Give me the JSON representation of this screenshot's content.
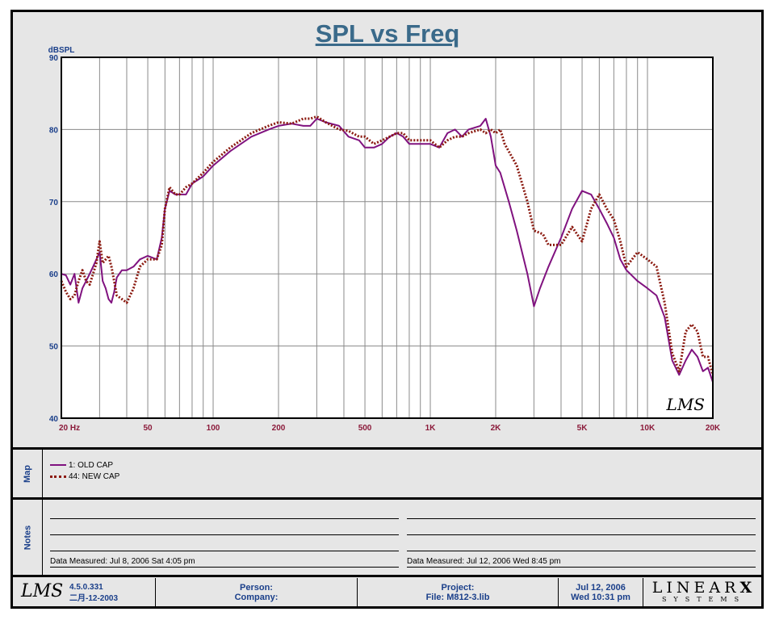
{
  "title": "SPL vs Freq",
  "chart_data": {
    "type": "line",
    "ylabel": "dBSPL",
    "xscale": "log",
    "xlim": [
      20,
      20000
    ],
    "ylim": [
      40,
      90
    ],
    "grid": true,
    "y_ticks": [
      40,
      50,
      60,
      70,
      80,
      90
    ],
    "y_tick_labels": [
      "40",
      "50",
      "60",
      "70",
      "80",
      "90"
    ],
    "x_ticks": [
      20,
      50,
      100,
      200,
      500,
      1000,
      2000,
      5000,
      10000,
      20000
    ],
    "x_tick_labels": [
      "20  Hz",
      "50",
      "100",
      "200",
      "500",
      "1K",
      "2K",
      "5K",
      "10K",
      "20K"
    ],
    "series": [
      {
        "name": "1: OLD CAP",
        "color": "#80127f",
        "style": "solid",
        "points": [
          [
            20,
            60
          ],
          [
            21,
            59.8
          ],
          [
            22,
            58.5
          ],
          [
            23,
            60
          ],
          [
            24,
            56
          ],
          [
            25,
            58
          ],
          [
            26,
            59
          ],
          [
            27,
            60
          ],
          [
            28,
            61
          ],
          [
            29,
            62
          ],
          [
            30,
            63
          ],
          [
            31,
            59
          ],
          [
            32,
            58
          ],
          [
            33,
            56.5
          ],
          [
            34,
            56
          ],
          [
            35,
            57.5
          ],
          [
            36,
            59.5
          ],
          [
            38,
            60.5
          ],
          [
            40,
            60.5
          ],
          [
            43,
            61
          ],
          [
            46,
            62
          ],
          [
            50,
            62.5
          ],
          [
            55,
            62
          ],
          [
            58,
            65
          ],
          [
            60,
            69
          ],
          [
            63,
            71.5
          ],
          [
            67,
            71
          ],
          [
            70,
            71
          ],
          [
            75,
            71
          ],
          [
            80,
            72.5
          ],
          [
            90,
            73.5
          ],
          [
            100,
            75
          ],
          [
            120,
            77
          ],
          [
            150,
            79
          ],
          [
            180,
            80
          ],
          [
            200,
            80.5
          ],
          [
            230,
            80.8
          ],
          [
            260,
            80.5
          ],
          [
            280,
            80.5
          ],
          [
            300,
            81.5
          ],
          [
            330,
            81
          ],
          [
            380,
            80.5
          ],
          [
            420,
            79
          ],
          [
            470,
            78.5
          ],
          [
            500,
            77.5
          ],
          [
            550,
            77.5
          ],
          [
            600,
            78
          ],
          [
            650,
            79
          ],
          [
            700,
            79.5
          ],
          [
            750,
            79
          ],
          [
            800,
            78
          ],
          [
            900,
            78
          ],
          [
            1000,
            78
          ],
          [
            1100,
            77.5
          ],
          [
            1200,
            79.5
          ],
          [
            1300,
            80
          ],
          [
            1400,
            79
          ],
          [
            1500,
            80
          ],
          [
            1700,
            80.5
          ],
          [
            1800,
            81.5
          ],
          [
            1900,
            79
          ],
          [
            2000,
            75
          ],
          [
            2100,
            74
          ],
          [
            2300,
            70
          ],
          [
            2500,
            66
          ],
          [
            2800,
            60
          ],
          [
            3000,
            55.5
          ],
          [
            3200,
            58
          ],
          [
            3500,
            61
          ],
          [
            4000,
            65
          ],
          [
            4500,
            69
          ],
          [
            5000,
            71.5
          ],
          [
            5500,
            71
          ],
          [
            6000,
            69
          ],
          [
            6500,
            67
          ],
          [
            7000,
            65
          ],
          [
            7500,
            62
          ],
          [
            8000,
            60.5
          ],
          [
            9000,
            59
          ],
          [
            10000,
            58
          ],
          [
            11000,
            57
          ],
          [
            12000,
            54
          ],
          [
            13000,
            48
          ],
          [
            14000,
            46
          ],
          [
            15000,
            48
          ],
          [
            16000,
            49.5
          ],
          [
            17000,
            48.5
          ],
          [
            18000,
            46.5
          ],
          [
            19000,
            47
          ],
          [
            20000,
            45
          ]
        ]
      },
      {
        "name": "44: NEW CAP",
        "color": "#8b1a10",
        "style": "dotted",
        "points": [
          [
            20,
            59
          ],
          [
            21,
            57.5
          ],
          [
            22,
            56.5
          ],
          [
            23,
            57
          ],
          [
            24,
            59
          ],
          [
            25,
            60.5
          ],
          [
            26,
            59
          ],
          [
            27,
            58.5
          ],
          [
            28,
            60
          ],
          [
            29,
            61.5
          ],
          [
            30,
            64.5
          ],
          [
            31,
            61.5
          ],
          [
            32,
            62
          ],
          [
            33,
            62.5
          ],
          [
            34,
            61
          ],
          [
            35,
            59
          ],
          [
            36,
            57
          ],
          [
            38,
            56.5
          ],
          [
            40,
            56
          ],
          [
            43,
            58
          ],
          [
            46,
            61
          ],
          [
            50,
            62
          ],
          [
            55,
            62
          ],
          [
            58,
            64
          ],
          [
            60,
            69
          ],
          [
            63,
            72
          ],
          [
            67,
            71
          ],
          [
            70,
            71
          ],
          [
            75,
            72
          ],
          [
            80,
            72.5
          ],
          [
            90,
            74
          ],
          [
            100,
            75.5
          ],
          [
            120,
            77.5
          ],
          [
            150,
            79.5
          ],
          [
            180,
            80.5
          ],
          [
            200,
            81
          ],
          [
            230,
            80.8
          ],
          [
            260,
            81.5
          ],
          [
            280,
            81.5
          ],
          [
            300,
            81.8
          ],
          [
            330,
            81
          ],
          [
            380,
            80
          ],
          [
            420,
            79.8
          ],
          [
            470,
            79
          ],
          [
            500,
            79
          ],
          [
            550,
            78
          ],
          [
            600,
            78.5
          ],
          [
            650,
            79
          ],
          [
            700,
            79.5
          ],
          [
            750,
            79.5
          ],
          [
            800,
            78.5
          ],
          [
            900,
            78.5
          ],
          [
            1000,
            78.5
          ],
          [
            1100,
            77.5
          ],
          [
            1200,
            78.5
          ],
          [
            1300,
            79
          ],
          [
            1400,
            79
          ],
          [
            1500,
            79.5
          ],
          [
            1700,
            80
          ],
          [
            1800,
            79.5
          ],
          [
            1900,
            80
          ],
          [
            2000,
            79.5
          ],
          [
            2100,
            80
          ],
          [
            2200,
            78
          ],
          [
            2500,
            75
          ],
          [
            2800,
            70
          ],
          [
            3000,
            66
          ],
          [
            3300,
            65.5
          ],
          [
            3500,
            64
          ],
          [
            4000,
            64
          ],
          [
            4500,
            66.5
          ],
          [
            5000,
            64.5
          ],
          [
            5500,
            69
          ],
          [
            6000,
            71
          ],
          [
            6500,
            69
          ],
          [
            7000,
            67.5
          ],
          [
            7500,
            64.5
          ],
          [
            8000,
            61
          ],
          [
            9000,
            63
          ],
          [
            10000,
            62
          ],
          [
            11000,
            61
          ],
          [
            12000,
            56
          ],
          [
            13000,
            49
          ],
          [
            14000,
            46.5
          ],
          [
            15000,
            52
          ],
          [
            16000,
            53
          ],
          [
            17000,
            52
          ],
          [
            18000,
            48.5
          ],
          [
            19000,
            48.5
          ],
          [
            20000,
            46
          ]
        ]
      }
    ]
  },
  "brand_mark": "LMS",
  "map": {
    "label": "Map",
    "items": [
      "1: OLD CAP",
      "44: NEW CAP"
    ]
  },
  "notes": {
    "label": "Notes",
    "measured_left": "Data Measured: Jul  8, 2006  Sat  4:05 pm",
    "measured_right": "Data Measured: Jul 12, 2006  Wed  8:45 pm"
  },
  "footer": {
    "logo": "LMS",
    "version": "4.5.0.331",
    "build_date": "二月-12-2003",
    "person_label": "Person:",
    "company_label": "Company:",
    "project_label": "Project:",
    "file_label": "File: M812-3.lib",
    "date": "Jul 12, 2006",
    "time": "Wed 10:31 pm",
    "brand_top": "LINEAR",
    "brand_x": "X",
    "brand_bottom": "SYSTEMS"
  }
}
